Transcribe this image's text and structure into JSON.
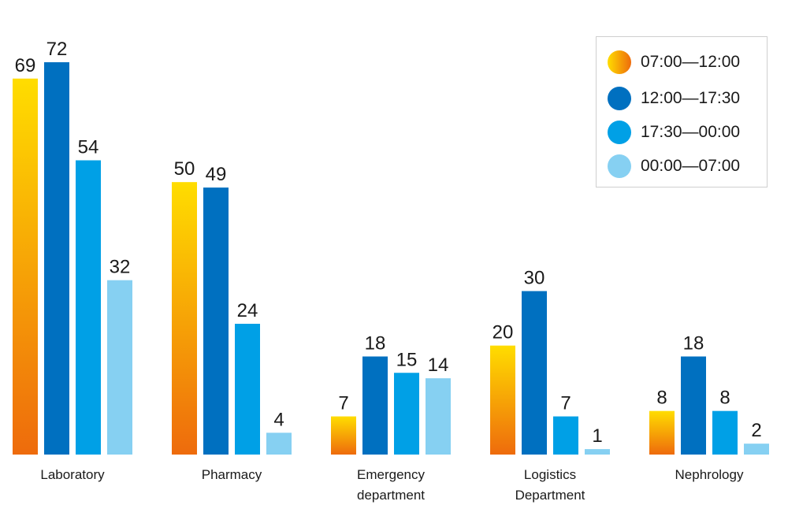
{
  "chart_data": {
    "type": "bar",
    "title": "",
    "xlabel": "",
    "ylabel": "",
    "ylim": [
      0,
      72
    ],
    "grid": false,
    "legend_position": "top-right",
    "categories": [
      [
        "Laboratory"
      ],
      [
        "Pharmacy"
      ],
      [
        "Emergency",
        "department"
      ],
      [
        "Logistics",
        "Department"
      ],
      [
        "Nephrology"
      ]
    ],
    "series": [
      {
        "name": "07:00—12:00",
        "values": [
          69,
          50,
          7,
          20,
          8
        ],
        "color_top": "#FFDD00",
        "color_bottom": "#EE6B0C"
      },
      {
        "name": "12:00—17:30",
        "values": [
          72,
          49,
          18,
          30,
          18
        ],
        "color": "#0070C0"
      },
      {
        "name": "17:30—00:00",
        "values": [
          54,
          24,
          15,
          7,
          8
        ],
        "color": "#00A0E6"
      },
      {
        "name": "00:00—07:00",
        "values": [
          32,
          4,
          14,
          1,
          2
        ],
        "color": "#86D0F2"
      }
    ]
  }
}
